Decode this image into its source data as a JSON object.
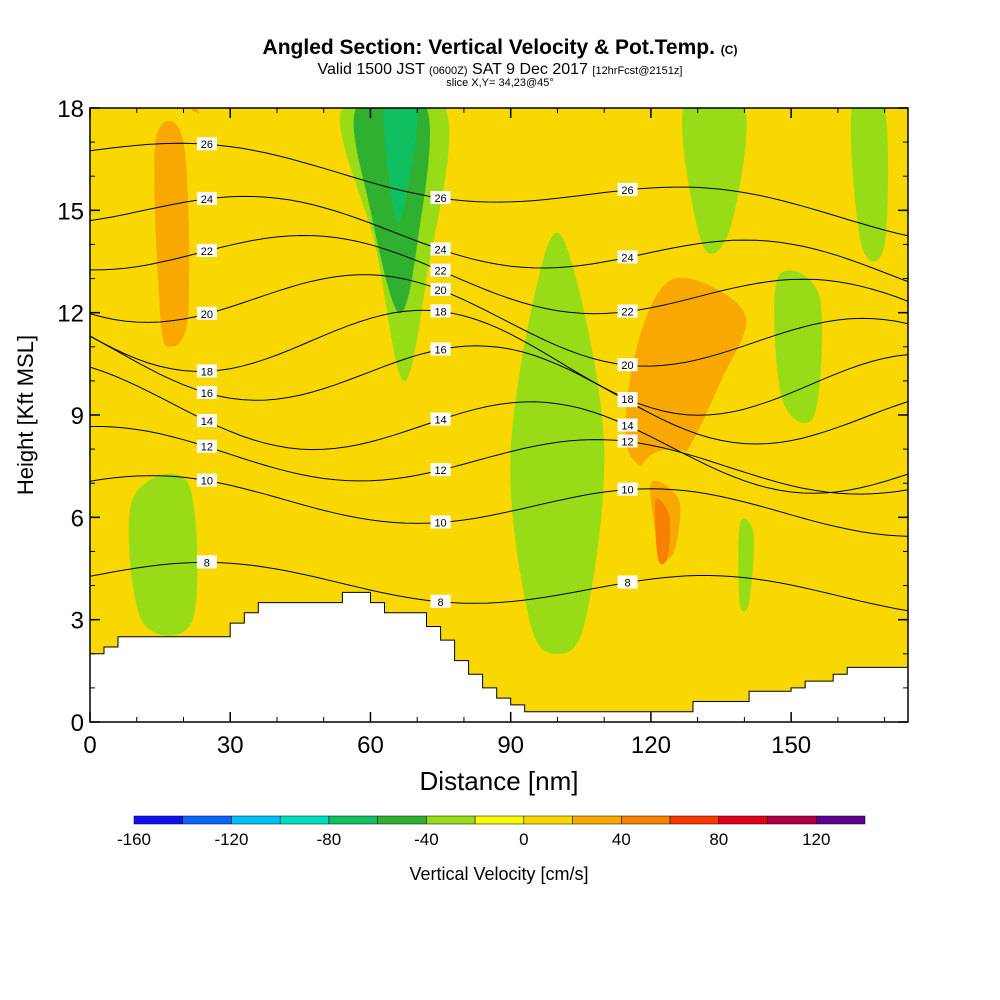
{
  "title": {
    "main": "Angled Section: Vertical Velocity & Pot.Temp.",
    "main_suffix": "(C)",
    "valid_prefix": "Valid 1500 JST",
    "valid_utc": "(0600Z)",
    "valid_date": "SAT 9 Dec 2017",
    "fcst": "[12hrFcst@2151z]",
    "slice": "slice X,Y= 34,23@45°"
  },
  "chart_data": {
    "type": "heatmap",
    "xlabel": "Distance [nm]",
    "ylabel": "Height [Kft MSL]",
    "xlim": [
      0,
      175
    ],
    "ylim": [
      0,
      18
    ],
    "xticks": [
      0,
      30,
      60,
      90,
      120,
      150
    ],
    "yticks": [
      0,
      3,
      6,
      9,
      12,
      15,
      18
    ],
    "colorbar": {
      "label": "Vertical Velocity [cm/s]",
      "ticks": [
        -160,
        -120,
        -80,
        -40,
        0,
        40,
        80,
        120
      ],
      "levels": [
        -160,
        -140,
        -120,
        -100,
        -80,
        -60,
        -40,
        -20,
        0,
        20,
        40,
        60,
        80,
        100,
        120,
        140
      ],
      "colors": [
        "#1010f0",
        "#0a64f8",
        "#00c0f8",
        "#00e0c0",
        "#10c060",
        "#30b030",
        "#98dc18",
        "#f8f800",
        "#f8d800",
        "#f8a800",
        "#f88000",
        "#f83800",
        "#e00018",
        "#b00048",
        "#600090"
      ]
    },
    "terrain": {
      "x": [
        0,
        3,
        6,
        9,
        18,
        30,
        33,
        36,
        42,
        48,
        51,
        54,
        57,
        60,
        63,
        66,
        69,
        72,
        75,
        78,
        81,
        84,
        87,
        90,
        93,
        96,
        99,
        102,
        105,
        108,
        111,
        114,
        117,
        120,
        123,
        126,
        129,
        132,
        135,
        138,
        141,
        144,
        147,
        150,
        153,
        156,
        159,
        162,
        165,
        168,
        171,
        175
      ],
      "height": [
        2.0,
        2.2,
        2.5,
        2.5,
        2.5,
        2.9,
        3.2,
        3.5,
        3.5,
        3.5,
        3.5,
        3.8,
        3.8,
        3.5,
        3.2,
        3.2,
        3.2,
        2.8,
        2.4,
        1.8,
        1.4,
        1.0,
        0.7,
        0.5,
        0.3,
        0.3,
        0.3,
        0.3,
        0.3,
        0.3,
        0.3,
        0.3,
        0.3,
        0.3,
        0.3,
        0.3,
        0.6,
        0.6,
        0.6,
        0.6,
        0.9,
        0.9,
        0.9,
        1.0,
        1.2,
        1.2,
        1.4,
        1.6,
        1.6,
        1.6,
        1.6,
        1.6
      ]
    },
    "vertical_velocity_regions": [
      {
        "level": 30,
        "x": [
          22,
          26,
          26,
          24,
          22,
          20
        ],
        "y": [
          18,
          16.5,
          14,
          11,
          11.5,
          15
        ]
      },
      {
        "level": 10,
        "x": [
          0,
          20,
          32,
          32,
          0
        ],
        "y": [
          17.5,
          18,
          16,
          8.5,
          8.5
        ]
      },
      {
        "level": 10,
        "x": [
          100,
          128,
          148,
          150,
          135,
          115,
          100
        ],
        "y": [
          9,
          8.5,
          9,
          12,
          14.5,
          15,
          12
        ]
      },
      {
        "level": 30,
        "x": [
          115,
          125,
          135,
          140,
          125,
          117
        ],
        "y": [
          8,
          7.5,
          10,
          12,
          13,
          11
        ]
      },
      {
        "level": 10,
        "x": [
          60,
          72,
          70,
          62,
          58
        ],
        "y": [
          7.5,
          7,
          2.5,
          3,
          5
        ]
      },
      {
        "level": 10,
        "x": [
          118,
          135,
          135,
          125,
          118
        ],
        "y": [
          7.5,
          7,
          1,
          0.5,
          2
        ]
      },
      {
        "level": 30,
        "x": [
          120,
          126,
          125,
          122
        ],
        "y": [
          7,
          6.5,
          5,
          5
        ]
      },
      {
        "level": 50,
        "x": [
          121,
          124,
          123.5,
          121.5
        ],
        "y": [
          6.5,
          6,
          4.8,
          4.8
        ]
      },
      {
        "level": 30,
        "x": [
          14,
          20,
          21,
          17,
          15
        ],
        "y": [
          17,
          17,
          12,
          11,
          12
        ]
      },
      {
        "level": 10,
        "x": [
          155,
          175,
          175,
          162
        ],
        "y": [
          9,
          10,
          2,
          3
        ]
      },
      {
        "level": 10,
        "x": [
          112,
          120,
          122,
          114
        ],
        "y": [
          18,
          18,
          16,
          16
        ]
      },
      {
        "level": -30,
        "x": [
          54,
          76,
          72,
          67,
          61
        ],
        "y": [
          18,
          18,
          13,
          10,
          14
        ]
      },
      {
        "level": -50,
        "x": [
          57,
          72,
          70,
          66,
          60
        ],
        "y": [
          18,
          18,
          14,
          12,
          15
        ]
      },
      {
        "level": -70,
        "x": [
          63,
          70,
          67,
          65
        ],
        "y": [
          18,
          18,
          15,
          15
        ]
      },
      {
        "level": -30,
        "x": [
          98,
          104,
          110,
          106,
          100,
          94,
          90
        ],
        "y": [
          14,
          13,
          8,
          3,
          2,
          3,
          8
        ]
      },
      {
        "level": -30,
        "x": [
          127,
          140,
          137,
          131
        ],
        "y": [
          18,
          18,
          14.5,
          14
        ]
      },
      {
        "level": -30,
        "x": [
          147,
          156,
          155,
          148
        ],
        "y": [
          13,
          12.5,
          9,
          9.5
        ]
      },
      {
        "level": -30,
        "x": [
          9,
          21,
          22,
          11
        ],
        "y": [
          6.5,
          7,
          3,
          3
        ]
      },
      {
        "level": -30,
        "x": [
          139,
          142,
          141,
          139
        ],
        "y": [
          5.8,
          5.5,
          3.5,
          3.5
        ]
      },
      {
        "level": -30,
        "x": [
          163,
          170,
          170,
          165
        ],
        "y": [
          18,
          18,
          14,
          14
        ]
      }
    ],
    "potential_temperature_contours": [
      {
        "label": "8",
        "y_base": 4.2,
        "amp": 0.5
      },
      {
        "label": "10",
        "y_base": 6.6,
        "amp": 0.6
      },
      {
        "label": "12",
        "y_base": 7.9,
        "amp": 0.7
      },
      {
        "label": "14",
        "y_base": 9.3,
        "amp": 1.0
      },
      {
        "label": "16",
        "y_base": 10.7,
        "amp": 1.1
      },
      {
        "label": "18",
        "y_base": 11.5,
        "amp": 1.2
      },
      {
        "label": "20",
        "y_base": 12.6,
        "amp": 1.0
      },
      {
        "label": "22",
        "y_base": 13.8,
        "amp": 0.8
      },
      {
        "label": "24",
        "y_base": 14.9,
        "amp": 0.7
      },
      {
        "label": "26",
        "y_base": 16.5,
        "amp": 0.5
      }
    ]
  }
}
